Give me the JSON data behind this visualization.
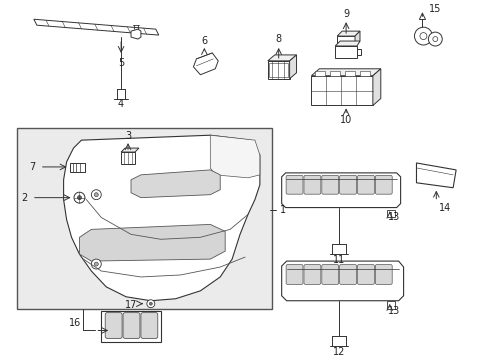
{
  "background_color": "#ffffff",
  "figsize": [
    4.89,
    3.6
  ],
  "dpi": 100,
  "lc": "#333333",
  "gray_fill": "#e8e8e8"
}
